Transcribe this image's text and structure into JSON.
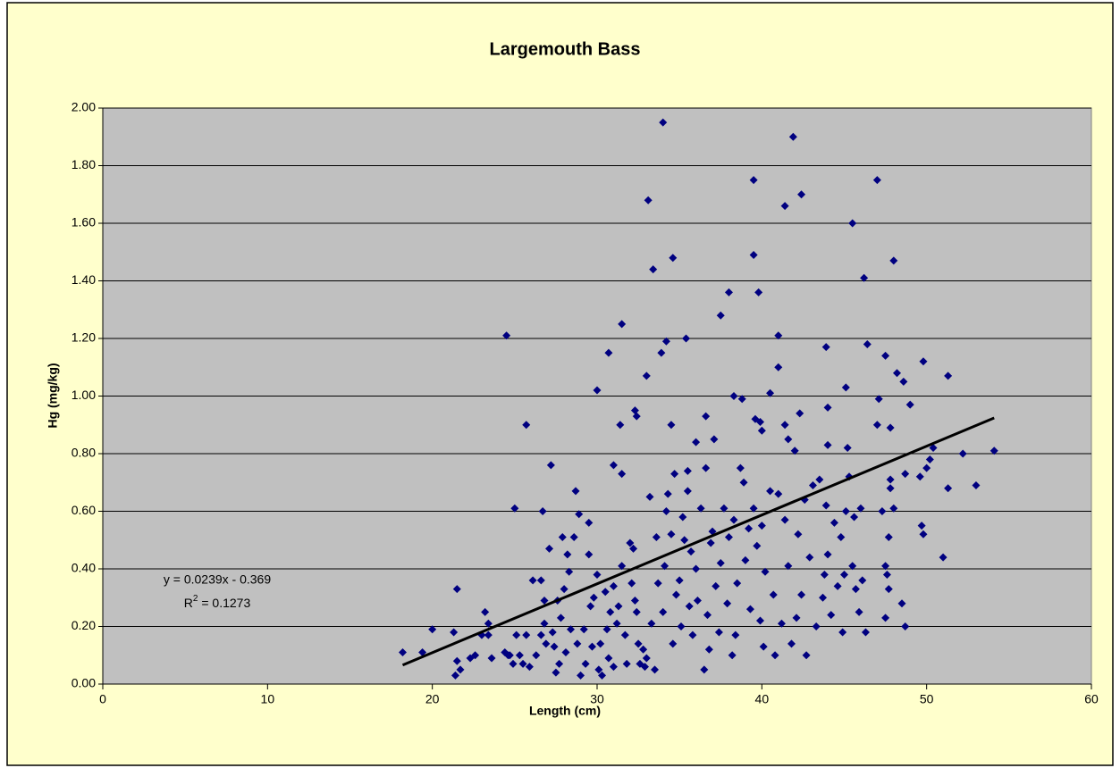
{
  "chart_data": {
    "type": "scatter",
    "title": "Largemouth Bass",
    "xlabel": "Length (cm)",
    "ylabel": "Hg (mg/kg)",
    "xlim": [
      0,
      60
    ],
    "xticks": [
      0,
      10,
      20,
      30,
      40,
      50,
      60
    ],
    "ylim": [
      0,
      2
    ],
    "yticks": [
      {
        "value": 0,
        "label": "0.00"
      },
      {
        "value": 0.2,
        "label": "0.20"
      },
      {
        "value": 0.4,
        "label": "0.40"
      },
      {
        "value": 0.6,
        "label": "0.60"
      },
      {
        "value": 0.8,
        "label": "0.80"
      },
      {
        "value": 1.0,
        "label": "1.00"
      },
      {
        "value": 1.2,
        "label": "1.20"
      },
      {
        "value": 1.4,
        "label": "1.40"
      },
      {
        "value": 1.6,
        "label": "1.60"
      },
      {
        "value": 1.8,
        "label": "1.80"
      },
      {
        "value": 2.0,
        "label": "2.00"
      }
    ],
    "grid": true,
    "color": "#000080",
    "x": [
      24.5,
      25.7,
      25,
      27.2,
      30,
      30.7,
      31.5,
      31,
      31.4,
      31.5,
      32.3,
      32.4,
      33.1,
      33.4,
      34,
      34.6,
      34.2,
      33.9,
      33,
      34.5,
      35.4,
      37.5,
      38,
      39.5,
      39.5,
      39.8,
      41.9,
      41.4,
      42.4,
      41,
      41,
      40.5,
      38.3,
      38.8,
      39.6,
      39.9,
      40,
      36.6,
      37.1,
      36,
      43.9,
      45.5,
      46.2,
      47,
      48,
      46.4,
      47.5,
      48.2,
      48.6,
      49.8,
      51.3,
      45.1,
      47.1,
      49,
      44,
      42.3,
      41.4,
      41.6,
      47.8,
      47,
      45.2,
      44,
      50.4,
      52.2,
      54.1,
      51.3,
      53,
      51,
      49.7,
      49.8,
      48.7,
      49.6,
      50,
      50.2,
      47.8,
      47.8,
      48,
      47.3,
      46,
      47.7,
      48.5,
      48.7,
      47.5,
      47.7,
      47.6,
      47.5,
      46.3,
      44.9,
      18.2,
      19.4,
      20,
      21.3,
      21.5,
      21.4,
      21.5,
      21.7,
      22.3,
      22.6,
      23,
      23.2,
      23.4,
      23.4,
      23.6,
      24.4,
      24.7,
      24.9,
      25.1,
      25.3,
      25.5,
      25.7,
      25.9,
      26.1,
      26.6,
      26.7,
      26.8,
      26.6,
      26.8,
      26.9,
      27.1,
      27.3,
      27.4,
      27.6,
      27.7,
      27.8,
      27.9,
      28,
      28.1,
      28.2,
      28.3,
      28.4,
      28.6,
      28.7,
      28.8,
      28.9,
      29,
      29.2,
      29.3,
      29.5,
      29.5,
      29.7,
      29.8,
      30,
      30.1,
      30.2,
      30.3,
      30.5,
      30.6,
      30.7,
      30.8,
      31,
      31,
      31.2,
      31.3,
      31.5,
      31.7,
      31.8,
      32,
      32.1,
      32.2,
      32.3,
      32.4,
      32.5,
      32.8,
      32.9,
      33,
      33.2,
      33.3,
      33.5,
      33.6,
      33.7,
      34,
      34.1,
      34.2,
      34.3,
      34.5,
      34.6,
      34.7,
      34.8,
      35,
      35.1,
      35.2,
      35.3,
      35.5,
      35.5,
      35.7,
      35.8,
      36,
      36.1,
      36.3,
      36.5,
      36.6,
      36.7,
      36.9,
      37,
      37.2,
      37.4,
      37.5,
      37.7,
      37.9,
      38,
      38.2,
      38.3,
      38.5,
      38.7,
      38.9,
      39,
      39.2,
      39.3,
      39.5,
      39.7,
      39.9,
      40,
      40.2,
      40.5,
      40.7,
      40.8,
      41,
      41.2,
      41.4,
      41.6,
      41.8,
      42,
      42.2,
      42.4,
      42.6,
      42.7,
      42.9,
      43.1,
      43.3,
      43.5,
      43.7,
      43.9,
      44,
      44.2,
      44.4,
      44.6,
      44.8,
      45,
      45.1,
      45.3,
      45.5,
      45.7,
      45.9,
      46.1,
      24.6,
      26.3,
      27.5,
      29.6,
      32.6,
      35.6,
      36.8,
      38.4,
      40.1,
      42.1,
      43.8,
      45.6
    ],
    "values": [
      1.21,
      0.9,
      0.61,
      0.76,
      1.02,
      1.15,
      1.25,
      0.76,
      0.9,
      0.73,
      0.95,
      0.93,
      1.68,
      1.44,
      1.95,
      1.48,
      1.19,
      1.15,
      1.07,
      0.9,
      1.2,
      1.28,
      1.36,
      1.75,
      1.49,
      1.36,
      1.9,
      1.66,
      1.7,
      1.21,
      1.1,
      1.01,
      1.0,
      0.99,
      0.92,
      0.91,
      0.88,
      0.93,
      0.85,
      0.84,
      1.17,
      1.6,
      1.41,
      1.75,
      1.47,
      1.18,
      1.14,
      1.08,
      1.05,
      1.12,
      1.07,
      1.03,
      0.99,
      0.97,
      0.96,
      0.94,
      0.9,
      0.85,
      0.89,
      0.9,
      0.82,
      0.83,
      0.82,
      0.8,
      0.81,
      0.68,
      0.69,
      0.44,
      0.55,
      0.52,
      0.73,
      0.72,
      0.75,
      0.78,
      0.71,
      0.68,
      0.61,
      0.6,
      0.61,
      0.51,
      0.28,
      0.2,
      0.23,
      0.33,
      0.38,
      0.41,
      0.18,
      0.18,
      0.11,
      0.11,
      0.19,
      0.18,
      0.33,
      0.03,
      0.08,
      0.05,
      0.09,
      0.1,
      0.17,
      0.25,
      0.21,
      0.17,
      0.09,
      0.11,
      0.1,
      0.07,
      0.17,
      0.1,
      0.07,
      0.17,
      0.06,
      0.36,
      0.36,
      0.6,
      0.29,
      0.17,
      0.21,
      0.14,
      0.47,
      0.18,
      0.13,
      0.29,
      0.07,
      0.23,
      0.51,
      0.33,
      0.11,
      0.45,
      0.39,
      0.19,
      0.51,
      0.67,
      0.14,
      0.59,
      0.03,
      0.19,
      0.07,
      0.45,
      0.56,
      0.13,
      0.3,
      0.38,
      0.05,
      0.14,
      0.03,
      0.32,
      0.19,
      0.09,
      0.25,
      0.34,
      0.06,
      0.21,
      0.27,
      0.41,
      0.17,
      0.07,
      0.49,
      0.35,
      0.47,
      0.29,
      0.25,
      0.14,
      0.12,
      0.06,
      0.09,
      0.65,
      0.21,
      0.05,
      0.51,
      0.35,
      0.25,
      0.41,
      0.6,
      0.66,
      0.52,
      0.14,
      0.73,
      0.31,
      0.36,
      0.2,
      0.58,
      0.5,
      0.67,
      0.74,
      0.46,
      0.17,
      0.4,
      0.29,
      0.61,
      0.05,
      0.75,
      0.24,
      0.49,
      0.53,
      0.34,
      0.18,
      0.42,
      0.61,
      0.28,
      0.51,
      0.1,
      0.57,
      0.35,
      0.75,
      0.7,
      0.43,
      0.54,
      0.26,
      0.61,
      0.48,
      0.22,
      0.55,
      0.39,
      0.67,
      0.31,
      0.1,
      0.66,
      0.21,
      0.57,
      0.41,
      0.14,
      0.81,
      0.52,
      0.31,
      0.64,
      0.1,
      0.44,
      0.69,
      0.2,
      0.71,
      0.3,
      0.62,
      0.45,
      0.24,
      0.56,
      0.34,
      0.51,
      0.38,
      0.6,
      0.72,
      0.41,
      0.33,
      0.25,
      0.36,
      0.1,
      0.1,
      0.04,
      0.27,
      0.07,
      0.27,
      0.12,
      0.17,
      0.13,
      0.23,
      0.38,
      0.58
    ],
    "trendline": {
      "x": [
        18.2,
        54.1
      ],
      "values": [
        0.066,
        0.924
      ],
      "color": "#000000"
    },
    "trendline_label": "y = 0.0239x - 0.369",
    "r2_label": {
      "prefix": "R",
      "sup": "2",
      "rest": " = 0.1273"
    }
  }
}
